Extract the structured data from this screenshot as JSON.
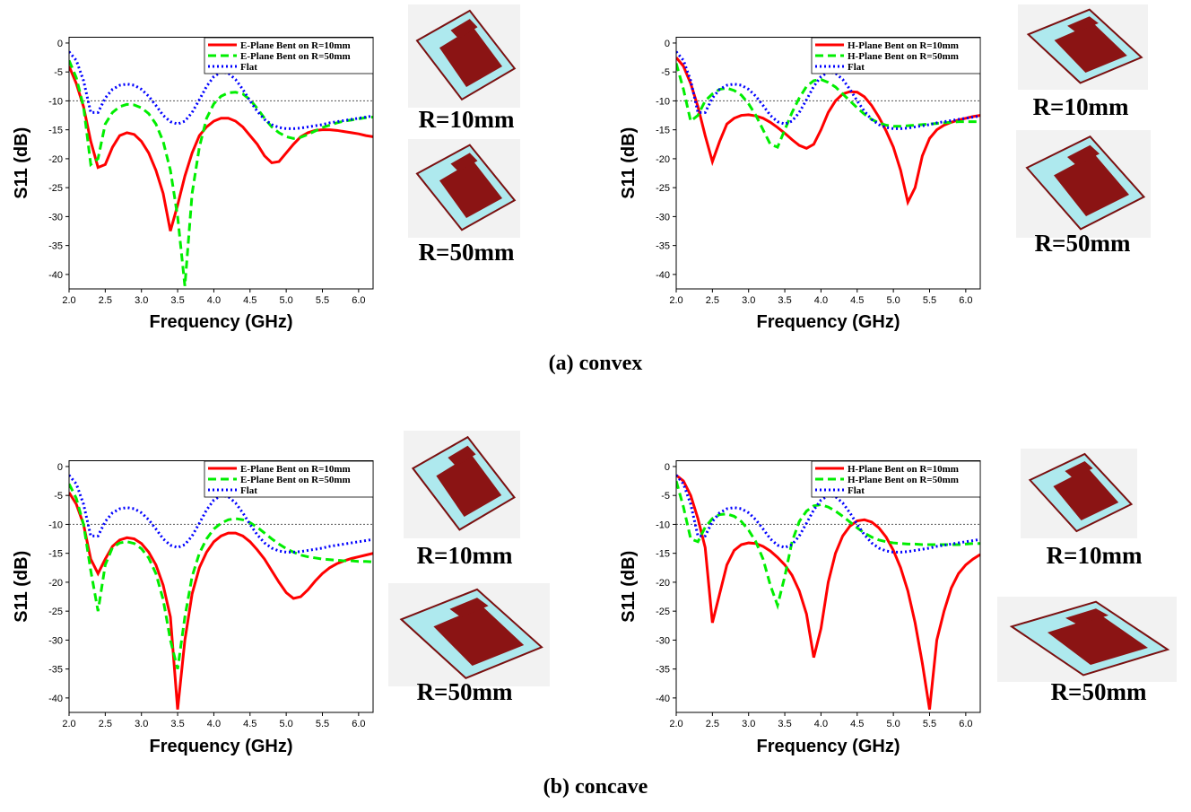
{
  "chart_data": [
    {
      "type": "line",
      "xlabel": "Frequency (GHz)",
      "ylabel": "S11 (dB)",
      "caption": "(a) convex",
      "x": [
        2,
        2.1,
        2.2,
        2.3,
        2.4,
        2.5,
        2.6,
        2.7,
        2.8,
        2.9,
        3,
        3.1,
        3.2,
        3.3,
        3.4,
        3.5,
        3.6,
        3.7,
        3.8,
        3.9,
        4,
        4.1,
        4.2,
        4.3,
        4.4,
        4.5,
        4.6,
        4.7,
        4.8,
        4.9,
        5,
        5.1,
        5.2,
        5.3,
        5.4,
        5.5,
        5.6,
        5.7,
        5.8,
        5.9,
        6,
        6.1,
        6.2
      ],
      "series": [
        {
          "name": "E-Plane Bent on R=10mm",
          "color": "#ff0000",
          "style": "solid",
          "values": [
            -4,
            -7,
            -11,
            -17,
            -21.5,
            -21,
            -18,
            -16,
            -15.5,
            -15.8,
            -17,
            -19,
            -22,
            -26,
            -32.5,
            -28,
            -23,
            -19,
            -16,
            -14.5,
            -13.5,
            -13,
            -13,
            -13.5,
            -14.5,
            -16,
            -17.5,
            -19.5,
            -20.7,
            -20.5,
            -19,
            -17.5,
            -16.2,
            -15.5,
            -15.1,
            -15,
            -15,
            -15.1,
            -15.3,
            -15.5,
            -15.7,
            -16,
            -16.2
          ]
        },
        {
          "name": "E-Plane Bent on R=50mm",
          "color": "#00ee00",
          "style": "dash",
          "values": [
            -3,
            -6,
            -11,
            -21,
            -20,
            -14,
            -12,
            -11,
            -10.6,
            -10.7,
            -11.2,
            -12.2,
            -14,
            -17,
            -22,
            -30,
            -42,
            -26,
            -18,
            -13,
            -10.5,
            -9.2,
            -8.6,
            -8.5,
            -8.8,
            -9.8,
            -11.3,
            -13,
            -14.5,
            -15.5,
            -16.2,
            -16.5,
            -16.3,
            -15.8,
            -15.2,
            -14.6,
            -14.2,
            -13.8,
            -13.5,
            -13.3,
            -13.1,
            -12.9,
            -12.8
          ]
        },
        {
          "name": "Flat",
          "color": "#0000ff",
          "style": "dot",
          "values": [
            -1.5,
            -3,
            -6.5,
            -12,
            -12,
            -9.5,
            -8,
            -7.3,
            -7.1,
            -7.3,
            -8,
            -9.2,
            -10.8,
            -12.5,
            -13.6,
            -14,
            -13.5,
            -12,
            -9.8,
            -7.5,
            -5.8,
            -5,
            -5.2,
            -6.3,
            -8,
            -10,
            -11.8,
            -13.2,
            -14.1,
            -14.6,
            -14.8,
            -14.8,
            -14.7,
            -14.5,
            -14.3,
            -14.1,
            -13.8,
            -13.6,
            -13.4,
            -13.2,
            -13,
            -12.8,
            -12.6
          ]
        }
      ],
      "xlim": [
        2,
        6.2
      ],
      "ylim": [
        -42.5,
        1
      ],
      "xticks": [
        {
          "value": 2,
          "label": "2.0"
        },
        2.5,
        {
          "value": 3,
          "label": "3.0"
        },
        3.5,
        {
          "value": 4,
          "label": "4.0"
        },
        4.5,
        {
          "value": 5,
          "label": "5.0"
        },
        5.5,
        {
          "value": 6,
          "label": "6.0"
        }
      ],
      "yticks": [
        0,
        -5,
        -10,
        -15,
        -20,
        -25,
        -30,
        -35,
        -40
      ],
      "ref_line": -10,
      "legend": "upper right",
      "inset_labels": [
        "R=10mm",
        "R=50mm"
      ]
    },
    {
      "type": "line",
      "xlabel": "Frequency (GHz)",
      "ylabel": "S11 (dB)",
      "x": [
        2,
        2.1,
        2.2,
        2.3,
        2.4,
        2.5,
        2.6,
        2.7,
        2.8,
        2.9,
        3,
        3.1,
        3.2,
        3.3,
        3.4,
        3.5,
        3.6,
        3.7,
        3.8,
        3.9,
        4,
        4.1,
        4.2,
        4.3,
        4.4,
        4.5,
        4.6,
        4.7,
        4.8,
        4.9,
        5,
        5.1,
        5.2,
        5.3,
        5.4,
        5.5,
        5.6,
        5.7,
        5.8,
        5.9,
        6,
        6.1,
        6.2
      ],
      "series": [
        {
          "name": "H-Plane Bent on R=10mm",
          "color": "#ff0000",
          "style": "solid",
          "values": [
            -2.5,
            -4,
            -7,
            -11,
            -16,
            -20.5,
            -17,
            -14,
            -13,
            -12.5,
            -12.4,
            -12.6,
            -13,
            -13.7,
            -14.6,
            -15.6,
            -16.7,
            -17.7,
            -18.2,
            -17.5,
            -15,
            -12,
            -10,
            -8.8,
            -8.4,
            -8.5,
            -9.3,
            -10.8,
            -12.8,
            -15.2,
            -18,
            -22,
            -27.5,
            -25,
            -19.5,
            -16.5,
            -15,
            -14.2,
            -13.7,
            -13.3,
            -13,
            -12.7,
            -12.5
          ]
        },
        {
          "name": "H-Plane Bent on R=50mm",
          "color": "#00ee00",
          "style": "dash",
          "values": [
            -3.5,
            -8,
            -13.5,
            -12.5,
            -10,
            -8.8,
            -8,
            -7.8,
            -8.2,
            -9,
            -10.5,
            -12.5,
            -15,
            -17.5,
            -18,
            -15,
            -12,
            -9.5,
            -7.5,
            -6.5,
            -6.3,
            -6.8,
            -7.6,
            -8.8,
            -10,
            -11.2,
            -12.3,
            -13.2,
            -13.8,
            -14.2,
            -14.4,
            -14.4,
            -14.3,
            -14.2,
            -14.1,
            -14,
            -13.9,
            -13.8,
            -13.7,
            -13.6,
            -13.6,
            -13.6,
            -13.6
          ]
        },
        {
          "name": "Flat",
          "color": "#0000ff",
          "style": "dot",
          "values": [
            -1.5,
            -3,
            -6.5,
            -12,
            -12,
            -9.5,
            -8,
            -7.3,
            -7.1,
            -7.3,
            -8,
            -9.2,
            -10.8,
            -12.5,
            -13.6,
            -14,
            -13.5,
            -12,
            -9.8,
            -7.5,
            -5.8,
            -5,
            -5.2,
            -6.3,
            -8,
            -10,
            -11.8,
            -13.2,
            -14.1,
            -14.6,
            -14.8,
            -14.8,
            -14.7,
            -14.5,
            -14.3,
            -14.1,
            -13.8,
            -13.6,
            -13.4,
            -13.2,
            -13,
            -12.8,
            -12.6
          ]
        }
      ],
      "xlim": [
        2,
        6.2
      ],
      "ylim": [
        -42.5,
        1
      ],
      "xticks": [
        {
          "value": 2,
          "label": "2.0"
        },
        2.5,
        {
          "value": 3,
          "label": "3.0"
        },
        3.5,
        {
          "value": 4,
          "label": "4.0"
        },
        4.5,
        {
          "value": 5,
          "label": "5.0"
        },
        5.5,
        {
          "value": 6,
          "label": "6.0"
        }
      ],
      "yticks": [
        0,
        -5,
        -10,
        -15,
        -20,
        -25,
        -30,
        -35,
        -40
      ],
      "ref_line": -10,
      "legend": "upper right",
      "inset_labels": [
        "R=10mm",
        "R=50mm"
      ]
    },
    {
      "type": "line",
      "xlabel": "Frequency (GHz)",
      "ylabel": "S11 (dB)",
      "caption": "(b) concave",
      "x": [
        2,
        2.1,
        2.2,
        2.3,
        2.4,
        2.5,
        2.6,
        2.7,
        2.8,
        2.9,
        3,
        3.1,
        3.2,
        3.3,
        3.4,
        3.5,
        3.6,
        3.7,
        3.8,
        3.9,
        4,
        4.1,
        4.2,
        4.3,
        4.4,
        4.5,
        4.6,
        4.7,
        4.8,
        4.9,
        5,
        5.1,
        5.2,
        5.3,
        5.4,
        5.5,
        5.6,
        5.7,
        5.8,
        5.9,
        6,
        6.1,
        6.2
      ],
      "series": [
        {
          "name": "E-Plane Bent on R=10mm",
          "color": "#ff0000",
          "style": "solid",
          "values": [
            -4.5,
            -6.5,
            -10,
            -16,
            -18.5,
            -16,
            -13.8,
            -12.7,
            -12.3,
            -12.5,
            -13.3,
            -14.8,
            -17,
            -20.5,
            -26,
            -42,
            -30,
            -22,
            -17.5,
            -14.8,
            -13,
            -12,
            -11.5,
            -11.5,
            -12,
            -13,
            -14.4,
            -16,
            -18,
            -20,
            -21.8,
            -22.8,
            -22.5,
            -21.3,
            -19.8,
            -18.5,
            -17.5,
            -16.8,
            -16.3,
            -15.9,
            -15.6,
            -15.3,
            -15
          ]
        },
        {
          "name": "E-Plane Bent on R=50mm",
          "color": "#00ee00",
          "style": "dash",
          "values": [
            -3,
            -5.5,
            -10,
            -18,
            -25,
            -17,
            -14,
            -13.2,
            -13,
            -13.3,
            -14.2,
            -15.8,
            -18.5,
            -23,
            -30,
            -35,
            -26,
            -19,
            -15,
            -12.5,
            -10.8,
            -9.8,
            -9.2,
            -9,
            -9.2,
            -9.7,
            -10.5,
            -11.5,
            -12.5,
            -13.4,
            -14.2,
            -14.8,
            -15.3,
            -15.6,
            -15.8,
            -16,
            -16.1,
            -16.2,
            -16.3,
            -16.3,
            -16.4,
            -16.4,
            -16.5
          ]
        },
        {
          "name": "Flat",
          "color": "#0000ff",
          "style": "dot",
          "values": [
            -1.5,
            -3,
            -6.5,
            -12,
            -12,
            -9.5,
            -8,
            -7.3,
            -7.1,
            -7.3,
            -8,
            -9.2,
            -10.8,
            -12.5,
            -13.6,
            -14,
            -13.5,
            -12,
            -9.8,
            -7.5,
            -5.8,
            -5,
            -5.2,
            -6.3,
            -8,
            -10,
            -11.8,
            -13.2,
            -14.1,
            -14.6,
            -14.8,
            -14.8,
            -14.7,
            -14.5,
            -14.3,
            -14.1,
            -13.8,
            -13.6,
            -13.4,
            -13.2,
            -13,
            -12.8,
            -12.6
          ]
        }
      ],
      "xlim": [
        2,
        6.2
      ],
      "ylim": [
        -42.5,
        1
      ],
      "xticks": [
        {
          "value": 2,
          "label": "2.0"
        },
        2.5,
        {
          "value": 3,
          "label": "3.0"
        },
        3.5,
        {
          "value": 4,
          "label": "4.0"
        },
        4.5,
        {
          "value": 5,
          "label": "5.0"
        },
        5.5,
        {
          "value": 6,
          "label": "6.0"
        }
      ],
      "yticks": [
        0,
        -5,
        -10,
        -15,
        -20,
        -25,
        -30,
        -35,
        -40
      ],
      "ref_line": -10,
      "legend": "upper right",
      "inset_labels": [
        "R=10mm",
        "R=50mm"
      ]
    },
    {
      "type": "line",
      "xlabel": "Frequency (GHz)",
      "ylabel": "S11 (dB)",
      "x": [
        2,
        2.1,
        2.2,
        2.3,
        2.4,
        2.5,
        2.6,
        2.7,
        2.8,
        2.9,
        3,
        3.1,
        3.2,
        3.3,
        3.4,
        3.5,
        3.6,
        3.7,
        3.8,
        3.9,
        4,
        4.1,
        4.2,
        4.3,
        4.4,
        4.5,
        4.6,
        4.7,
        4.8,
        4.9,
        5,
        5.1,
        5.2,
        5.3,
        5.4,
        5.5,
        5.6,
        5.7,
        5.8,
        5.9,
        6,
        6.1,
        6.2
      ],
      "series": [
        {
          "name": "H-Plane Bent on R=10mm",
          "color": "#ff0000",
          "style": "solid",
          "values": [
            -1.5,
            -2.5,
            -5,
            -9,
            -14,
            -27,
            -22,
            -17,
            -14.5,
            -13.5,
            -13.2,
            -13.3,
            -13.8,
            -14.6,
            -15.7,
            -17,
            -18.8,
            -21.5,
            -25.5,
            -33,
            -28,
            -20,
            -15,
            -12,
            -10.3,
            -9.4,
            -9.2,
            -9.6,
            -10.6,
            -12.2,
            -14.5,
            -17.5,
            -21.5,
            -27,
            -34,
            -42,
            -30,
            -25,
            -21,
            -18.5,
            -17,
            -16,
            -15.2
          ]
        },
        {
          "name": "H-Plane Bent on R=50mm",
          "color": "#00ee00",
          "style": "dash",
          "values": [
            -2.5,
            -7,
            -12.5,
            -13,
            -10.5,
            -9,
            -8.3,
            -8.2,
            -8.6,
            -9.5,
            -11,
            -13,
            -16,
            -20.5,
            -24,
            -19,
            -13,
            -9.5,
            -7.7,
            -6.8,
            -6.6,
            -7,
            -7.7,
            -8.6,
            -9.6,
            -10.6,
            -11.5,
            -12.2,
            -12.7,
            -13,
            -13.2,
            -13.3,
            -13.4,
            -13.4,
            -13.5,
            -13.5,
            -13.5,
            -13.5,
            -13.5,
            -13.5,
            -13.4,
            -13.3,
            -13.3
          ]
        },
        {
          "name": "Flat",
          "color": "#0000ff",
          "style": "dot",
          "values": [
            -1.5,
            -3,
            -6.5,
            -12,
            -12,
            -9.5,
            -8,
            -7.3,
            -7.1,
            -7.3,
            -8,
            -9.2,
            -10.8,
            -12.5,
            -13.6,
            -14,
            -13.5,
            -12,
            -9.8,
            -7.5,
            -5.8,
            -5,
            -5.2,
            -6.3,
            -8,
            -10,
            -11.8,
            -13.2,
            -14.1,
            -14.6,
            -14.8,
            -14.8,
            -14.7,
            -14.5,
            -14.3,
            -14.1,
            -13.8,
            -13.6,
            -13.4,
            -13.2,
            -13,
            -12.8,
            -12.6
          ]
        }
      ],
      "xlim": [
        2,
        6.2
      ],
      "ylim": [
        -42.5,
        1
      ],
      "xticks": [
        {
          "value": 2,
          "label": "2.0"
        },
        2.5,
        {
          "value": 3,
          "label": "3.0"
        },
        3.5,
        {
          "value": 4,
          "label": "4.0"
        },
        4.5,
        {
          "value": 5,
          "label": "5.0"
        },
        5.5,
        {
          "value": 6,
          "label": "6.0"
        }
      ],
      "yticks": [
        0,
        -5,
        -10,
        -15,
        -20,
        -25,
        -30,
        -35,
        -40
      ],
      "ref_line": -10,
      "legend": "upper right",
      "inset_labels": [
        "R=10mm",
        "R=50mm"
      ]
    }
  ]
}
